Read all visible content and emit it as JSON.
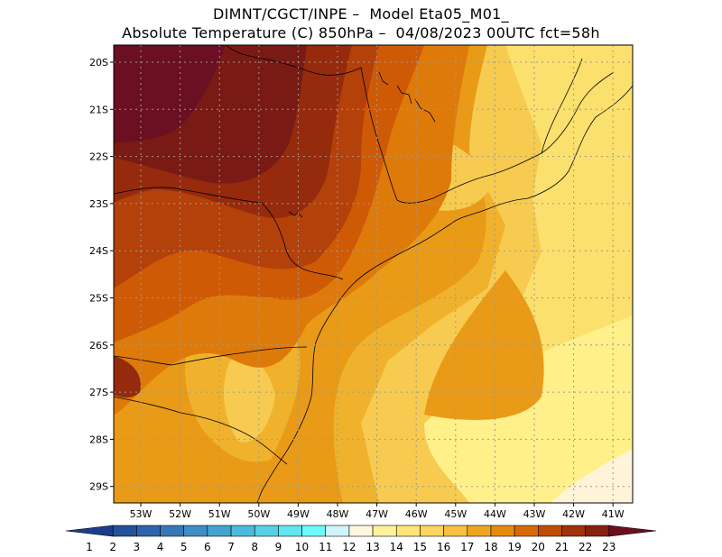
{
  "header": {
    "line1": "DIMNT/CGCT/INPE –  Model Eta05_M01_",
    "line2": "Absolute Temperature (C) 850hPa –  04/08/2023 00UTC fct=58h"
  },
  "axes": {
    "lat_labels": [
      "20S",
      "21S",
      "22S",
      "23S",
      "24S",
      "25S",
      "26S",
      "27S",
      "28S",
      "29S"
    ],
    "lon_labels": [
      "53W",
      "52W",
      "51W",
      "50W",
      "49W",
      "48W",
      "47W",
      "46W",
      "45W",
      "44W",
      "43W",
      "42W",
      "41W"
    ]
  },
  "colorbar": {
    "labels": [
      "1",
      "2",
      "3",
      "4",
      "5",
      "6",
      "7",
      "8",
      "9",
      "10",
      "11",
      "12",
      "13",
      "14",
      "15",
      "16",
      "17",
      "18",
      "19",
      "20",
      "21",
      "22",
      "23"
    ],
    "colors": [
      "#1d3d8c",
      "#25509c",
      "#2e64ab",
      "#3679b8",
      "#3d8ec4",
      "#44a4d0",
      "#4cbadc",
      "#55d0e6",
      "#5fe6ef",
      "#6cfafa",
      "#cff5fb",
      "#fff7dd",
      "#fff29a",
      "#fee577",
      "#fcd55e",
      "#f7c041",
      "#f0a51f",
      "#e58a0c",
      "#d76a06",
      "#c04d05",
      "#a0330a",
      "#852012",
      "#6b0f1f"
    ]
  },
  "fields": {
    "c12": "#fff4d9",
    "c13": "#fff08a",
    "c14": "#fbe06d",
    "c15": "#f6cb4f",
    "c16": "#f0b22d",
    "c17": "#e99a16",
    "c18": "#de7a0a",
    "c19": "#cf5a06",
    "c20": "#b4400a",
    "c21": "#962a0c",
    "c22": "#7a1a14",
    "c23": "#6b0f22"
  }
}
